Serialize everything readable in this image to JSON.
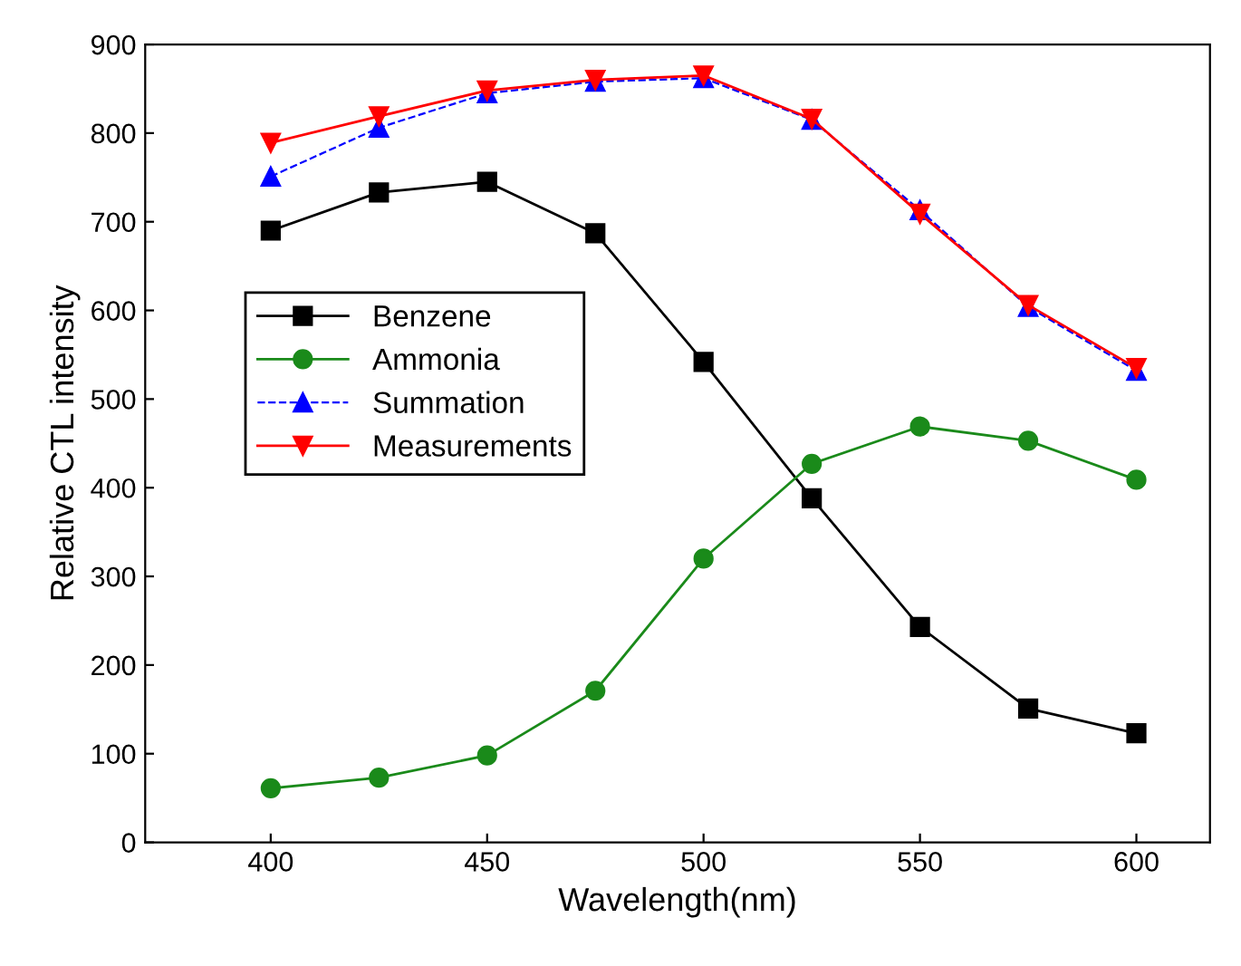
{
  "chart_data": {
    "type": "line",
    "xlabel": "Wavelength(nm)",
    "ylabel": "Relative CTL intensity",
    "x": [
      400,
      425,
      450,
      475,
      500,
      525,
      550,
      575,
      600
    ],
    "series": [
      {
        "name": "Benzene",
        "color": "#000000",
        "marker": "square",
        "line_style": "solid",
        "values": [
          690,
          733,
          745,
          687,
          542,
          388,
          243,
          151,
          123
        ]
      },
      {
        "name": "Ammonia",
        "color": "#1a8a1a",
        "marker": "circle",
        "line_style": "solid",
        "values": [
          61,
          73,
          98,
          171,
          320,
          427,
          469,
          453,
          409
        ]
      },
      {
        "name": "Summation",
        "color": "#0000ff",
        "marker": "triangle",
        "line_style": "dashed",
        "values": [
          751,
          806,
          845,
          858,
          862,
          815,
          713,
          604,
          532
        ]
      },
      {
        "name": "Measurements",
        "color": "#ff0000",
        "marker": "triangle_down",
        "line_style": "solid",
        "values": [
          789,
          819,
          848,
          860,
          865,
          816,
          709,
          606,
          535
        ]
      }
    ],
    "xlim": [
      371,
      617
    ],
    "ylim": [
      0,
      900
    ],
    "xticks": [
      400,
      450,
      500,
      550,
      600
    ],
    "yticks": [
      0,
      100,
      200,
      300,
      400,
      500,
      600,
      700,
      800,
      900
    ],
    "grid": false,
    "legend": "center left"
  }
}
